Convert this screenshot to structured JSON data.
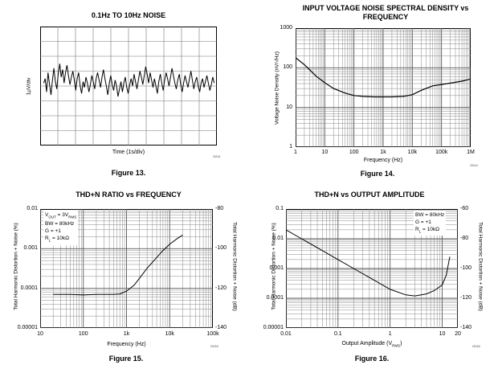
{
  "chart_data": [
    {
      "type": "line",
      "title": "0.1Hz TO 10Hz NOISE",
      "figure": "Figure 13.",
      "xlabel": "Time (1s/div)",
      "ylabel": "1µV/div",
      "code": "G011",
      "grid": true,
      "divisions": {
        "x": 10,
        "y": 8
      },
      "series": [
        {
          "name": "noise",
          "values": [
            0.2,
            0.5,
            -0.4,
            0.9,
            0.1,
            -0.6,
            0.4,
            1.2,
            0.3,
            -0.2,
            0.8,
            1.5,
            0.6,
            1.1,
            0.2,
            0.9,
            1.4,
            0.7,
            0.1,
            0.6,
            1.0,
            0.4,
            -0.3,
            0.5,
            0.9,
            0.0,
            -0.5,
            0.3,
            -0.1,
            0.6,
            0.2,
            -0.4,
            0.1,
            0.7,
            0.3,
            -0.2,
            0.5,
            0.9,
            0.4,
            -0.1,
            0.6,
            1.1,
            0.5,
            0.0,
            -0.6,
            0.2,
            0.7,
            0.1,
            -0.3,
            0.4,
            0.0,
            -0.7,
            -0.2,
            0.3,
            -0.4,
            0.2,
            0.6,
            -0.1,
            -0.5,
            0.1,
            0.5,
            0.0,
            0.8,
            0.3,
            -0.2,
            0.4,
            1.0,
            0.6,
            0.1,
            0.7,
            1.3,
            0.8,
            0.2,
            0.9,
            0.4,
            -0.1,
            0.5,
            0.0,
            -0.5,
            0.3,
            0.8,
            0.2,
            -0.3,
            0.4,
            0.9,
            0.5,
            0.0,
            0.6,
            1.2,
            0.7,
            0.2,
            -0.2,
            0.4,
            0.8,
            0.1,
            -0.4,
            0.2,
            0.7,
            0.3,
            -0.1,
            0.5,
            1.0,
            0.4,
            -0.2,
            0.3,
            0.6,
            0.0,
            -0.4,
            0.2,
            0.5,
            -0.1,
            0.3,
            0.7,
            0.2,
            -0.3,
            0.1,
            0.6,
            0.2
          ]
        }
      ]
    },
    {
      "type": "line",
      "title": "INPUT VOLTAGE NOISE SPECTRAL DENSITY vs FREQUENCY",
      "title_lines": [
        "INPUT VOLTAGE NOISE SPECTRAL DENSITY vs",
        "FREQUENCY"
      ],
      "figure": "Figure 14.",
      "xlabel": "Frequency (Hz)",
      "ylabel": "Voltage Noise Density (nV/√Hz)",
      "code": "G014",
      "xscale": "log",
      "yscale": "log",
      "xlim": [
        1,
        1000000
      ],
      "ylim": [
        1,
        1000
      ],
      "xticks": [
        "1",
        "10",
        "100",
        "1k",
        "10k",
        "100k",
        "1M"
      ],
      "yticks": [
        "1000",
        "100",
        "10",
        "1"
      ],
      "series": [
        {
          "name": "en",
          "x": [
            1,
            2,
            3,
            5,
            10,
            20,
            50,
            100,
            200,
            500,
            1000,
            2000,
            5000,
            10000,
            20000,
            50000,
            100000,
            200000,
            500000,
            1000000
          ],
          "y": [
            180,
            120,
            90,
            62,
            42,
            30,
            23,
            20,
            19,
            18.5,
            18.5,
            18.5,
            19,
            21,
            27,
            35,
            38,
            41,
            46,
            52
          ]
        }
      ]
    },
    {
      "type": "line",
      "title": "THD+N RATIO vs FREQUENCY",
      "figure": "Figure 15.",
      "xlabel": "Frequency (Hz)",
      "ylabel": "Total Harmonic Distortion + Noise (%)",
      "ylabel_right": "Total Harmonic Distortion + Noise (dB)",
      "code": "G015",
      "xscale": "log",
      "yscale": "log",
      "xlim": [
        10,
        100000
      ],
      "ylim": [
        1e-05,
        0.01
      ],
      "xticks": [
        "10",
        "100",
        "1k",
        "10k",
        "100k"
      ],
      "yticks": [
        "0.01",
        "0.001",
        "0.0001",
        "0.00001"
      ],
      "yticks_right": [
        "-80",
        "-100",
        "-120",
        "-140"
      ],
      "legend": [
        "Vₒᵤₜ = 3Vᵣₘₛ",
        "BW = 80kHz",
        "G = +1",
        "Rₗ = 10kΩ"
      ],
      "legend_parts": [
        {
          "a": "V",
          "sub1": "OUT",
          "b": " = 3V",
          "sub2": "RMS"
        },
        {
          "a": "BW = 80kHz"
        },
        {
          "a": "G = +1"
        },
        {
          "a": "R",
          "sub1": "L",
          "b": " = 10kΩ"
        }
      ],
      "series": [
        {
          "name": "thdn",
          "x": [
            20,
            50,
            100,
            200,
            500,
            700,
            1000,
            1500,
            2000,
            3000,
            5000,
            7000,
            10000,
            15000,
            20000
          ],
          "y": [
            7e-05,
            7e-05,
            6.8e-05,
            7e-05,
            7e-05,
            7.2e-05,
            8.5e-05,
            0.00012,
            0.00018,
            0.00032,
            0.0006,
            0.0009,
            0.0013,
            0.0018,
            0.0022
          ]
        }
      ]
    },
    {
      "type": "line",
      "title": "THD+N vs OUTPUT AMPLITUDE",
      "figure": "Figure 16.",
      "xlabel_parts": {
        "a": "Output Amplitude (V",
        "sub": "RMS",
        "b": ")"
      },
      "xlabel": "Output Amplitude (VRMS)",
      "ylabel": "Total Harmonic Distortion + Noise (%)",
      "ylabel_right": "Total Harmonic Distortion + Noise (dB)",
      "code": "G016",
      "xscale": "log",
      "yscale": "log",
      "xlim": [
        0.01,
        20
      ],
      "ylim": [
        1e-05,
        0.1
      ],
      "xticks": [
        "0.01",
        "0.1",
        "1",
        "10",
        "20"
      ],
      "yticks": [
        "0.1",
        "0.01",
        "0.001",
        "0.0001",
        "0.00001"
      ],
      "yticks_right": [
        "-60",
        "-80",
        "-100",
        "-120",
        "-140"
      ],
      "legend_parts": [
        {
          "a": "BW = 80kHz"
        },
        {
          "a": "G = +1"
        },
        {
          "a": "R",
          "sub1": "L",
          "b": " = 10kΩ"
        }
      ],
      "series": [
        {
          "name": "thdn",
          "x": [
            0.01,
            0.02,
            0.05,
            0.1,
            0.2,
            0.5,
            1,
            2,
            3,
            5,
            7,
            10,
            12,
            14
          ],
          "y": [
            0.02,
            0.01,
            0.004,
            0.002,
            0.001,
            0.0004,
            0.0002,
            0.00013,
            0.00012,
            0.00014,
            0.00018,
            0.00028,
            0.0006,
            0.0025
          ]
        }
      ]
    }
  ]
}
